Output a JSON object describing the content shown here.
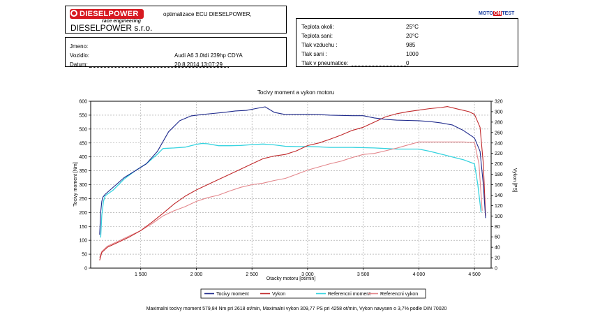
{
  "header": {
    "logo_text": "DIESELPOWER",
    "logo_sub": "race engineering",
    "company_desc": "optimalizace ECU DIESELPOWER,",
    "company_name": "DIESELPOWER s.r.o."
  },
  "vehicle": {
    "jmeno_label": "Jmeno:",
    "jmeno_value": "",
    "vozidlo_label": "Vozidlo:",
    "vozidlo_value": "Audi A6 3.0tdi 239hp CDYA",
    "datum_label": "Datum:",
    "datum_value": "20.8.2014 13:07:29"
  },
  "conditions": {
    "logo": {
      "part1": "MOTO",
      "part2": "ON",
      "part3": "TEST"
    },
    "rows": [
      {
        "label": "Teplota okoli:",
        "value": "25°C"
      },
      {
        "label": "Teplota sani:",
        "value": "20°C"
      },
      {
        "label": "Tlak vzduchu :",
        "value": "985"
      },
      {
        "label": "Tlak sani :",
        "value": "1000"
      },
      {
        "label": "Tlak v pneumatice:",
        "value": "0"
      }
    ]
  },
  "footer": {
    "text": "Maximalni tocivy moment 579,84 Nm pri 2618 ot/min,  Maximalni vykon 309,77 PS pri 4258 ot/min,  Vykon navysen o 3,7% podle DIN 70020"
  },
  "chart_data": {
    "type": "line",
    "title": "Tocivy moment a vykon motoru",
    "xlabel": "Otacky motoru [ot/min]",
    "ylabel": "Tocivy moment [Nm]",
    "y2label": "Vykon [PS]",
    "xlim": [
      1050,
      4650
    ],
    "ylim": [
      0,
      600
    ],
    "y2lim": [
      0,
      320
    ],
    "x_ticks": [
      1500,
      2000,
      2500,
      3000,
      3500,
      4000,
      4500
    ],
    "x_tick_labels": [
      "1 500",
      "2 000",
      "2 500",
      "3 000",
      "3 500",
      "4 000",
      "4 500"
    ],
    "y_ticks": [
      0,
      50,
      100,
      150,
      200,
      250,
      300,
      350,
      400,
      450,
      500,
      550,
      600
    ],
    "y2_ticks": [
      0,
      20,
      40,
      60,
      80,
      100,
      120,
      140,
      160,
      180,
      200,
      220,
      240,
      260,
      280,
      300,
      320
    ],
    "grid": true,
    "legend_position": "bottom",
    "colors": {
      "torque": "#1f2a8c",
      "power": "#c0292b",
      "ref_torque": "#35d3df",
      "ref_power": "#e3868b"
    },
    "series": [
      {
        "name": "Tocivy moment",
        "axis": "left",
        "color": "#1f2a8c",
        "x": [
          1130,
          1140,
          1150,
          1160,
          1180,
          1250,
          1350,
          1450,
          1550,
          1650,
          1750,
          1850,
          1950,
          2050,
          2150,
          2250,
          2350,
          2450,
          2550,
          2618,
          2700,
          2800,
          2900,
          3000,
          3100,
          3200,
          3300,
          3400,
          3500,
          3600,
          3700,
          3800,
          3900,
          4000,
          4100,
          4200,
          4300,
          4400,
          4500,
          4550,
          4580,
          4600
        ],
        "y": [
          120,
          200,
          240,
          255,
          265,
          290,
          325,
          350,
          375,
          420,
          490,
          530,
          547,
          552,
          556,
          560,
          565,
          567,
          575,
          579.84,
          560,
          552,
          553,
          553,
          552,
          550,
          549,
          548,
          548,
          540,
          535,
          532,
          531,
          530,
          527,
          522,
          515,
          495,
          468,
          420,
          300,
          180
        ]
      },
      {
        "name": "Vykon",
        "axis": "right",
        "color": "#c0292b",
        "x": [
          1130,
          1150,
          1200,
          1300,
          1400,
          1500,
          1600,
          1700,
          1800,
          1900,
          2000,
          2100,
          2200,
          2300,
          2400,
          2500,
          2600,
          2700,
          2800,
          2900,
          3000,
          3100,
          3200,
          3300,
          3400,
          3500,
          3600,
          3700,
          3800,
          3900,
          4000,
          4100,
          4200,
          4258,
          4350,
          4450,
          4500,
          4550,
          4580,
          4600
        ],
        "y": [
          15,
          30,
          40,
          50,
          60,
          72,
          88,
          105,
          123,
          138,
          150,
          160,
          170,
          180,
          190,
          200,
          210,
          215,
          218,
          225,
          235,
          240,
          247,
          255,
          264,
          270,
          280,
          290,
          296,
          300,
          303,
          306,
          308,
          309.77,
          305,
          300,
          295,
          270,
          200,
          100
        ]
      },
      {
        "name": "Referencni moment",
        "axis": "left",
        "color": "#35d3df",
        "x": [
          1140,
          1150,
          1165,
          1180,
          1250,
          1350,
          1450,
          1550,
          1650,
          1700,
          1800,
          1900,
          2000,
          2050,
          2100,
          2200,
          2300,
          2400,
          2500,
          2600,
          2700,
          2800,
          2900,
          3000,
          3100,
          3200,
          3300,
          3400,
          3500,
          3600,
          3700,
          3800,
          3900,
          4000,
          4100,
          4200,
          4300,
          4400,
          4500,
          4530,
          4560
        ],
        "y": [
          110,
          190,
          240,
          260,
          280,
          320,
          350,
          375,
          410,
          430,
          432,
          435,
          445,
          448,
          447,
          440,
          440,
          441,
          444,
          446,
          443,
          438,
          437,
          437,
          436,
          434,
          434,
          434,
          433,
          432,
          430,
          428,
          428,
          428,
          420,
          410,
          400,
          390,
          375,
          300,
          200
        ]
      },
      {
        "name": "Referencni vykon",
        "axis": "right",
        "color": "#e3868b",
        "x": [
          1130,
          1150,
          1200,
          1300,
          1400,
          1500,
          1600,
          1700,
          1800,
          1900,
          2000,
          2100,
          2200,
          2300,
          2400,
          2500,
          2600,
          2700,
          2800,
          2900,
          3000,
          3100,
          3200,
          3300,
          3400,
          3500,
          3600,
          3700,
          3800,
          3900,
          4000,
          4100,
          4200,
          4300,
          4400,
          4500,
          4540,
          4570
        ],
        "y": [
          20,
          32,
          42,
          52,
          62,
          72,
          85,
          100,
          110,
          118,
          128,
          135,
          140,
          148,
          155,
          160,
          163,
          168,
          172,
          180,
          188,
          194,
          200,
          205,
          212,
          218,
          220,
          225,
          230,
          236,
          242,
          242,
          242,
          242,
          242,
          241,
          200,
          110
        ]
      }
    ]
  }
}
